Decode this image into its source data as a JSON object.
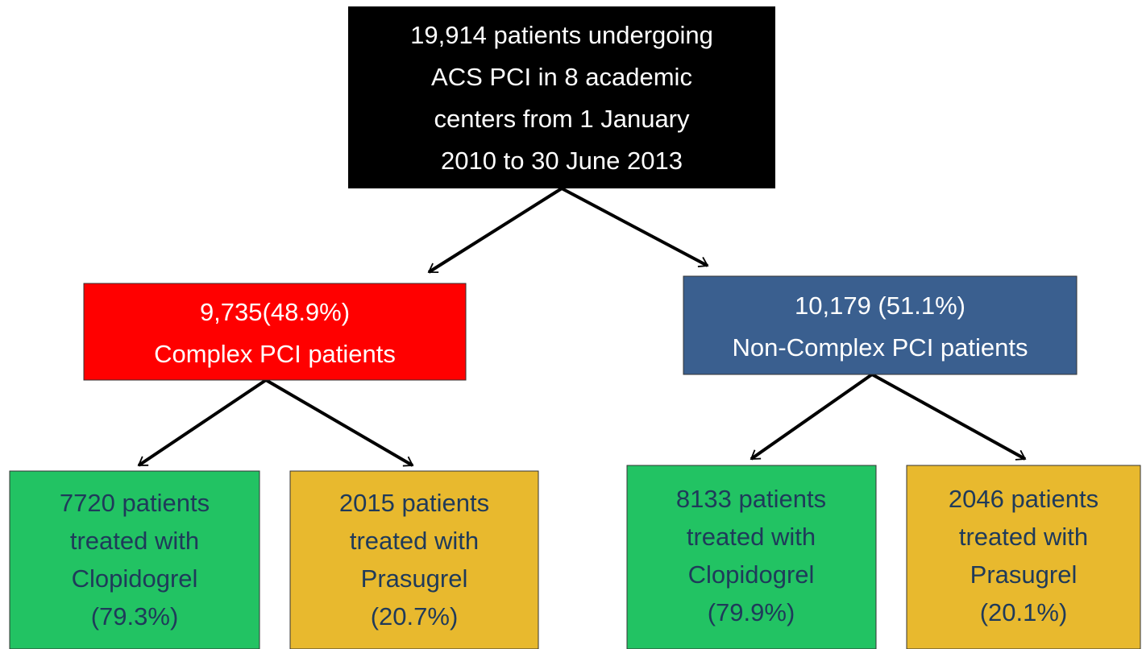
{
  "nodes": [
    {
      "lines": [
        "19,914 patients undergoing",
        "ACS PCI in 8 academic",
        "centers from 1 January",
        "2010 to 30 June 2013"
      ]
    },
    {
      "lines": [
        "9,735(48.9%)",
        "Complex PCI patients"
      ]
    },
    {
      "lines": [
        "10,179 (51.1%)",
        "Non-Complex PCI patients"
      ]
    },
    {
      "lines": [
        "7720 patients",
        "treated with",
        "Clopidogrel",
        "(79.3%)"
      ]
    },
    {
      "lines": [
        "2015 patients",
        "treated with",
        "Prasugrel",
        "(20.7%)"
      ]
    },
    {
      "lines": [
        "8133 patients",
        "treated with",
        "Clopidogrel",
        "(79.9%)"
      ]
    },
    {
      "lines": [
        "2046 patients",
        "treated with",
        "Prasugrel",
        "(20.1%)"
      ]
    }
  ]
}
